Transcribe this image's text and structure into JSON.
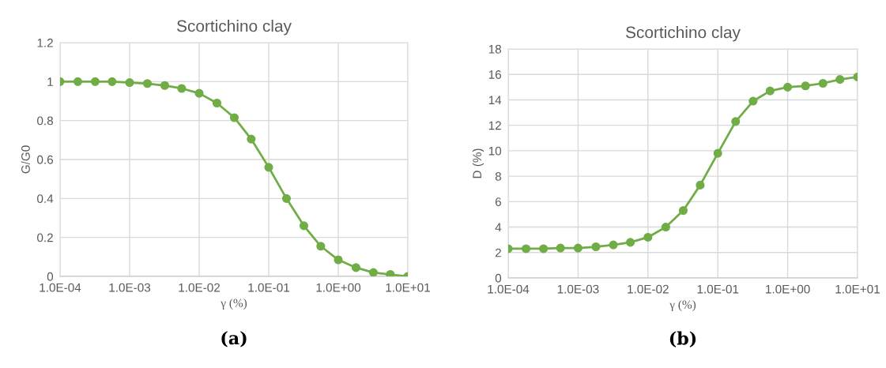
{
  "chart_data": [
    {
      "type": "line",
      "title": "Scortichino clay",
      "xlabel": "γ (%)",
      "ylabel": "G/G0",
      "log": "x",
      "grid": true,
      "marker": "circle",
      "line_style": "solid",
      "x": [
        0.0001,
        0.00018,
        0.00032,
        0.00056,
        0.001,
        0.0018,
        0.0032,
        0.0056,
        0.01,
        0.018,
        0.032,
        0.056,
        0.1,
        0.18,
        0.32,
        0.56,
        1,
        1.8,
        3.2,
        5.6,
        10
      ],
      "series": [
        {
          "color": "#70ad47",
          "values": [
            1.0,
            1.0,
            1.0,
            1.0,
            0.995,
            0.99,
            0.98,
            0.965,
            0.94,
            0.89,
            0.815,
            0.705,
            0.56,
            0.4,
            0.26,
            0.155,
            0.085,
            0.045,
            0.02,
            0.01,
            0.0
          ]
        }
      ],
      "xlim": [
        0.0001,
        10
      ],
      "xticks": [
        {
          "value": 0.0001,
          "label": "1.0E-04"
        },
        {
          "value": 0.001,
          "label": "1.0E-03"
        },
        {
          "value": 0.01,
          "label": "1.0E-02"
        },
        {
          "value": 0.1,
          "label": "1.0E-01"
        },
        {
          "value": 1,
          "label": "1.0E+00"
        },
        {
          "value": 10,
          "label": "1.0E+01"
        }
      ],
      "ylim": [
        0,
        1.2
      ],
      "yticks": [
        0,
        0.2,
        0.4,
        0.6,
        0.8,
        1,
        1.2
      ],
      "annotations": [
        "(a)"
      ]
    },
    {
      "type": "line",
      "title": "Scortichino clay",
      "xlabel": "γ (%)",
      "ylabel": "D (%)",
      "log": "x",
      "grid": true,
      "marker": "circle",
      "line_style": "solid",
      "x": [
        0.0001,
        0.00018,
        0.00032,
        0.00056,
        0.001,
        0.0018,
        0.0032,
        0.0056,
        0.01,
        0.018,
        0.032,
        0.056,
        0.1,
        0.18,
        0.32,
        0.56,
        1,
        1.8,
        3.2,
        5.6,
        10
      ],
      "series": [
        {
          "color": "#70ad47",
          "values": [
            2.3,
            2.3,
            2.3,
            2.35,
            2.35,
            2.45,
            2.6,
            2.8,
            3.2,
            4.0,
            5.3,
            7.3,
            9.8,
            12.3,
            13.9,
            14.7,
            15.0,
            15.1,
            15.3,
            15.6,
            15.8
          ]
        }
      ],
      "xlim": [
        0.0001,
        10
      ],
      "xticks": [
        {
          "value": 0.0001,
          "label": "1.0E-04"
        },
        {
          "value": 0.001,
          "label": "1.0E-03"
        },
        {
          "value": 0.01,
          "label": "1.0E-02"
        },
        {
          "value": 0.1,
          "label": "1.0E-01"
        },
        {
          "value": 1,
          "label": "1.0E+00"
        },
        {
          "value": 10,
          "label": "1.0E+01"
        }
      ],
      "ylim": [
        0,
        18
      ],
      "yticks": [
        0,
        2,
        4,
        6,
        8,
        10,
        12,
        14,
        16,
        18
      ],
      "annotations": [
        "(b)"
      ]
    }
  ]
}
